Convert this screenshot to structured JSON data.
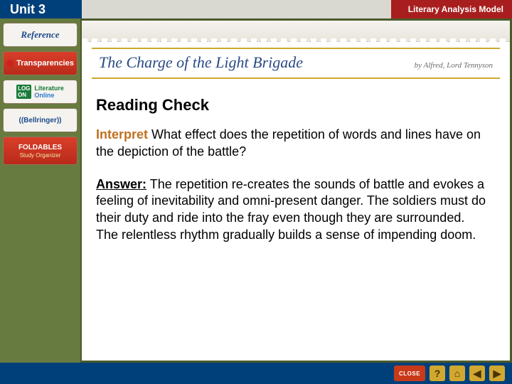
{
  "topbar": {
    "unit_label": "Unit 3",
    "branding": "Literary Analysis Model",
    "colors": {
      "left_bg": "#00407a",
      "right_bg": "#a81e1e",
      "mid_bg": "#d9d9d2"
    }
  },
  "sidebar": {
    "bg_color": "#677a3f",
    "items": [
      {
        "label": "Reference",
        "kind": "ref"
      },
      {
        "label": "Transparencies",
        "kind": "trans"
      },
      {
        "label": "Literature",
        "sub": "Online",
        "kind": "lit"
      },
      {
        "label": "((Bellringer))",
        "kind": "bell"
      },
      {
        "label": "FOLDABLES",
        "sub": "Study Organizer",
        "kind": "fold"
      }
    ]
  },
  "banner": {
    "title": "The Charge of the Light Brigade",
    "author_prefix": "by",
    "author": "Alfred, Lord Tennyson",
    "title_color": "#2a4a85",
    "rule_color": "#d0a830"
  },
  "content": {
    "section": "Reading Check",
    "question_lead": "Interpret",
    "question_body": "What effect does the repetition of words and lines have on the depiction of the battle?",
    "answer_lead": "Answer:",
    "answer_body": "The repetition re-creates the sounds of battle and evokes a feeling of inevitability and omni-present danger. The soldiers must do their duty and ride into the fray even though they are surrounded. The relentless rhythm gradually builds a sense of impending doom.",
    "lead_color": "#c07020",
    "body_fontsize": 18
  },
  "footer": {
    "bg_color": "#00407a",
    "buttons": [
      {
        "name": "close",
        "label": "CLOSE"
      },
      {
        "name": "help",
        "label": "?"
      },
      {
        "name": "home",
        "label": "⌂"
      },
      {
        "name": "back",
        "label": "◀"
      },
      {
        "name": "forward",
        "label": "▶"
      }
    ]
  }
}
